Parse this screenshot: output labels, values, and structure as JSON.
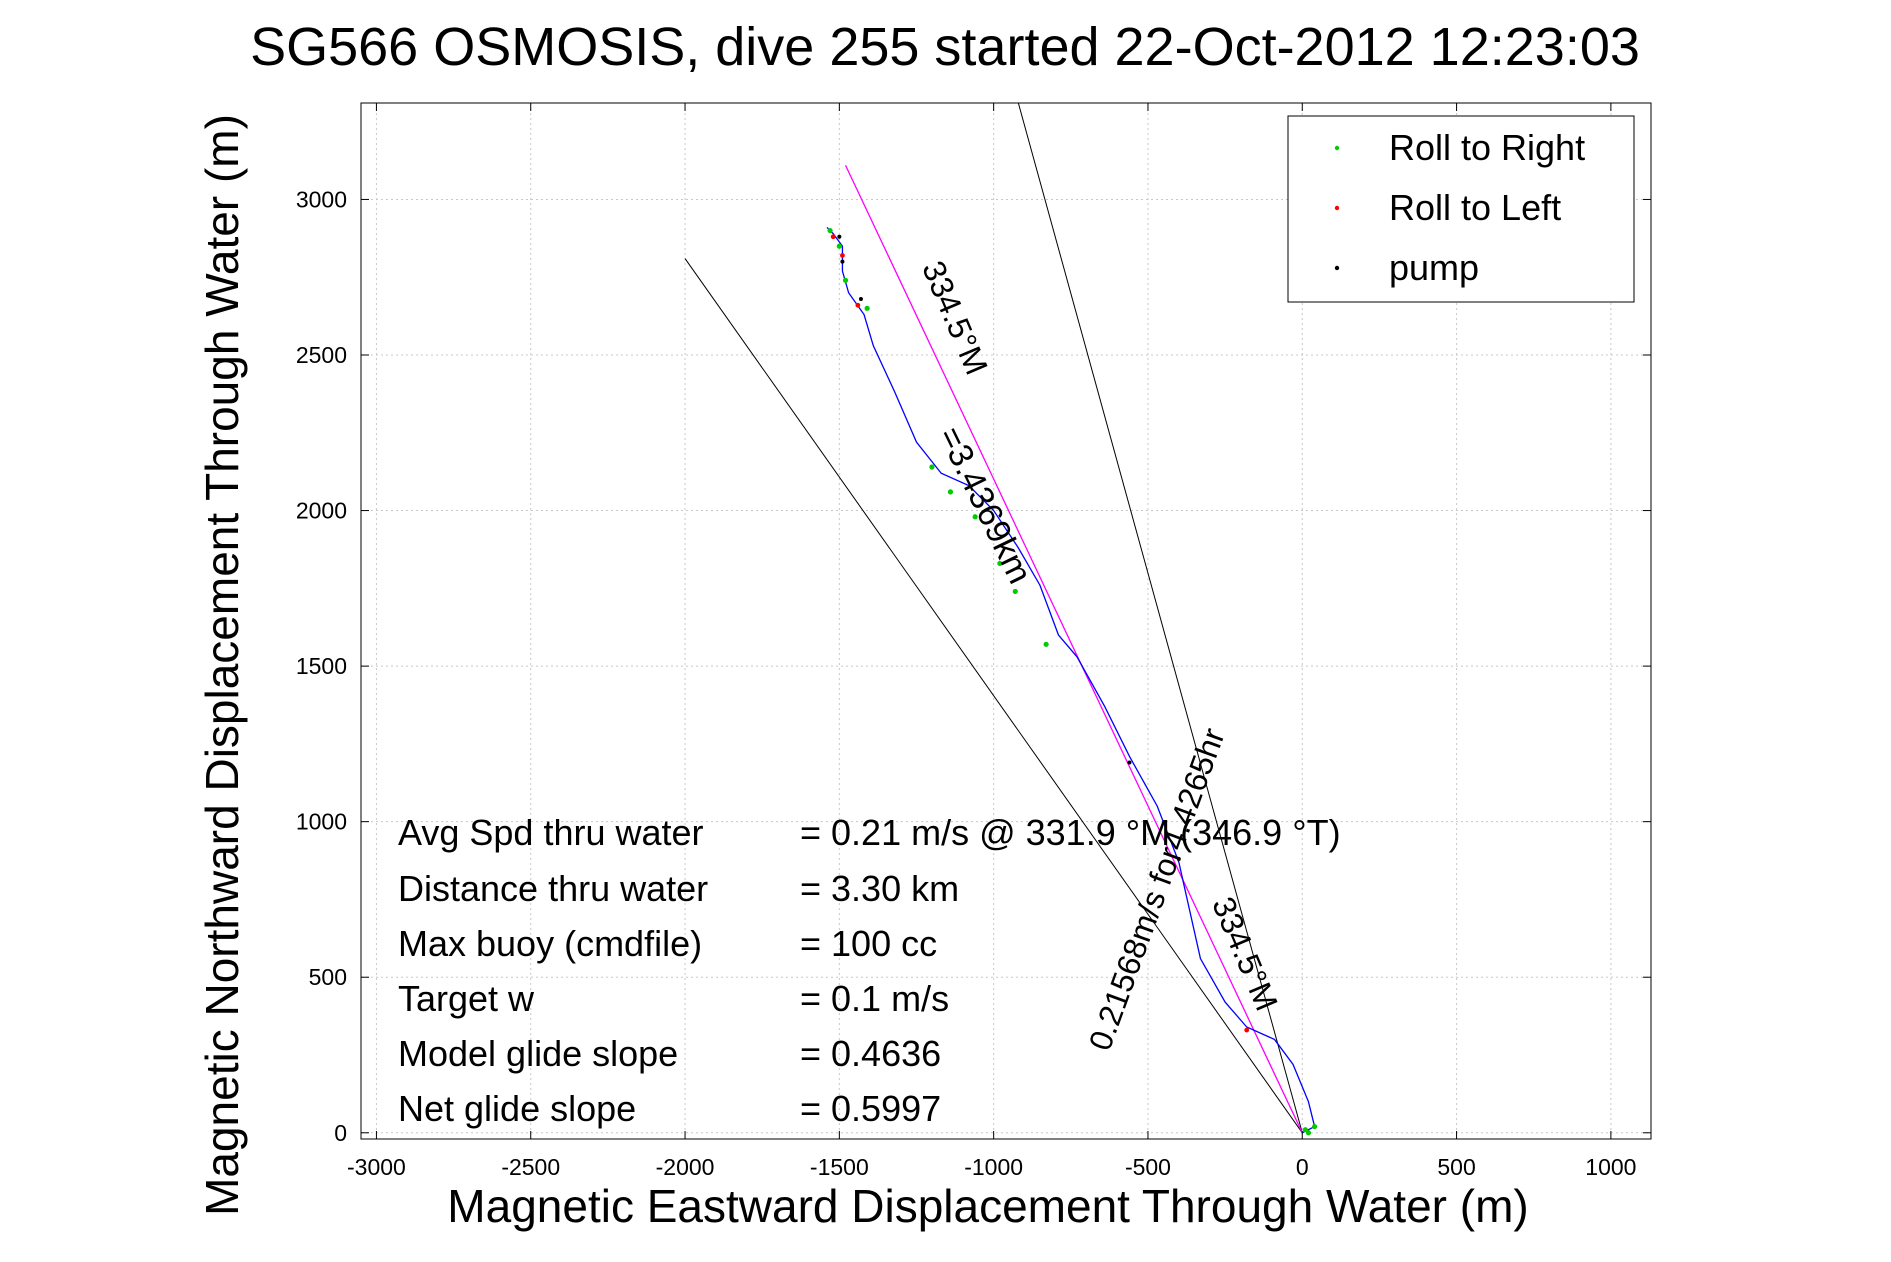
{
  "chart_data": {
    "type": "scatter",
    "title": "SG566 OSMOSIS, dive 255 started 22-Oct-2012 12:23:03",
    "xlabel": "Magnetic Eastward Displacement Through Water (m)",
    "ylabel": "Magnetic Northward Displacement Through Water (m)",
    "xlim": [
      -3050,
      1130
    ],
    "ylim": [
      -20,
      3310
    ],
    "x_ticks": [
      -3000,
      -2500,
      -2000,
      -1500,
      -1000,
      -500,
      0,
      500,
      1000
    ],
    "y_ticks": [
      0,
      500,
      1000,
      1500,
      2000,
      2500,
      3000
    ],
    "grid": true,
    "legend_position": "top-right",
    "legend": [
      {
        "label": "Roll to Right",
        "color": "#00cc00"
      },
      {
        "label": "Roll to Left",
        "color": "#ff0000"
      },
      {
        "label": "pump",
        "color": "#000000"
      }
    ],
    "track": {
      "color": "#0000ff",
      "points": [
        [
          0,
          0
        ],
        [
          40,
          20
        ],
        [
          20,
          100
        ],
        [
          -30,
          220
        ],
        [
          -90,
          300
        ],
        [
          -180,
          340
        ],
        [
          -250,
          420
        ],
        [
          -330,
          560
        ],
        [
          -400,
          870
        ],
        [
          -470,
          1050
        ],
        [
          -560,
          1210
        ],
        [
          -640,
          1370
        ],
        [
          -730,
          1530
        ],
        [
          -790,
          1600
        ],
        [
          -850,
          1760
        ],
        [
          -920,
          1880
        ],
        [
          -1000,
          2000
        ],
        [
          -1080,
          2080
        ],
        [
          -1170,
          2120
        ],
        [
          -1250,
          2220
        ],
        [
          -1320,
          2380
        ],
        [
          -1390,
          2530
        ],
        [
          -1420,
          2630
        ],
        [
          -1470,
          2700
        ],
        [
          -1490,
          2770
        ],
        [
          -1490,
          2850
        ],
        [
          -1520,
          2890
        ],
        [
          -1540,
          2910
        ]
      ]
    },
    "target_line": {
      "color": "#ff00ff",
      "from": [
        0,
        0
      ],
      "to": [
        -1480,
        3110
      ]
    },
    "wedge_lines": {
      "color": "#000000",
      "lines": [
        {
          "from": [
            0,
            0
          ],
          "to": [
            -2000,
            2810
          ]
        },
        {
          "from": [
            0,
            0
          ],
          "to": [
            -920,
            3310
          ]
        }
      ]
    },
    "roll_right_points": [
      [
        20,
        0
      ],
      [
        40,
        20
      ],
      [
        10,
        10
      ],
      [
        -1200,
        2140
      ],
      [
        -1140,
        2060
      ],
      [
        -1060,
        1980
      ],
      [
        -980,
        1830
      ],
      [
        -930,
        1740
      ],
      [
        -830,
        1570
      ],
      [
        -1530,
        2900
      ],
      [
        -1500,
        2850
      ],
      [
        -1480,
        2740
      ],
      [
        -1410,
        2650
      ]
    ],
    "roll_left_points": [
      [
        -180,
        330
      ],
      [
        -1490,
        2820
      ],
      [
        -1520,
        2880
      ],
      [
        -1440,
        2660
      ]
    ],
    "pump_points": [
      [
        -1500,
        2880
      ],
      [
        -1490,
        2800
      ],
      [
        -1430,
        2680
      ],
      [
        -560,
        1190
      ],
      [
        -400,
        880
      ]
    ],
    "annotations": {
      "heading_top": "334.5°M",
      "distance_label": "=3.4369km",
      "time_label": "0.21568m/s for4.4265hr",
      "heading_bottom": "334.5°M"
    },
    "stats": [
      {
        "label": "Avg Spd thru water",
        "value": "=  0.21 m/s @ 331.9 °M (346.9 °T)"
      },
      {
        "label": "Distance thru water",
        "value": "=  3.30 km"
      },
      {
        "label": "Max buoy (cmdfile)",
        "value": "= 100 cc"
      },
      {
        "label": "Target w",
        "value": "= 0.1 m/s"
      },
      {
        "label": "Model glide slope",
        "value": "= 0.4636"
      },
      {
        "label": "Net glide slope",
        "value": "= 0.5997"
      }
    ]
  }
}
